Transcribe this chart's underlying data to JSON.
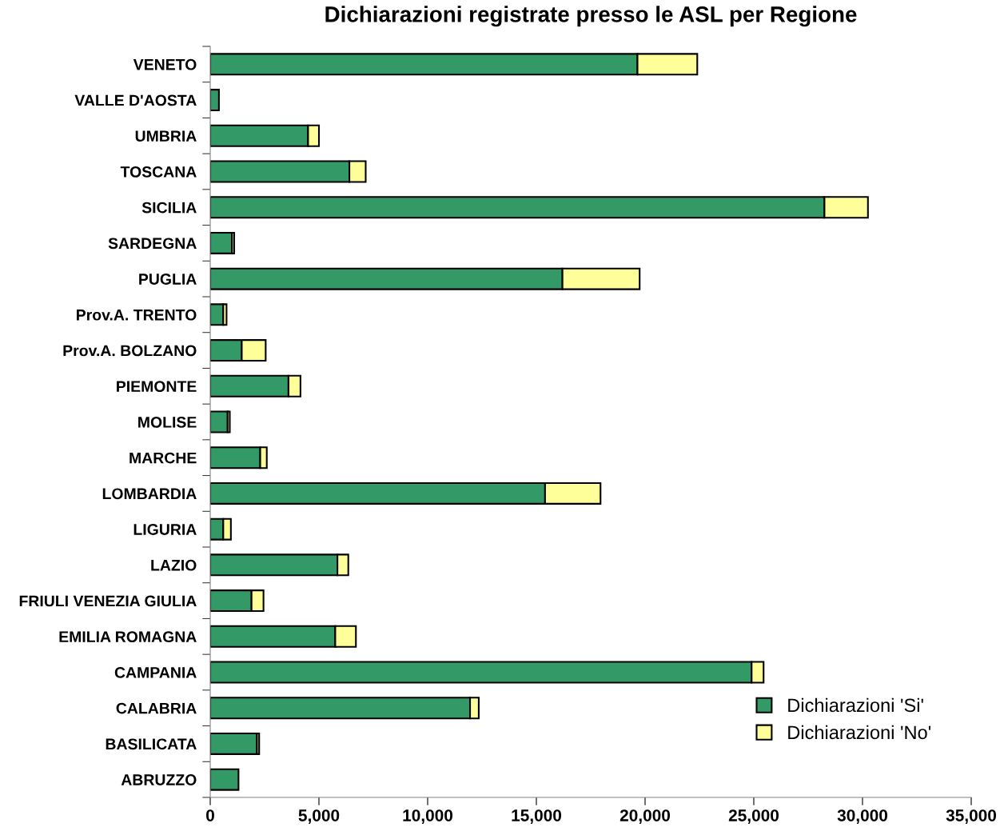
{
  "chart_data": {
    "type": "bar",
    "orientation": "horizontal",
    "stacked": true,
    "title": "Dichiarazioni registrate presso le ASL per Regione",
    "categories": [
      "VENETO",
      "VALLE D'AOSTA",
      "UMBRIA",
      "TOSCANA",
      "SICILIA",
      "SARDEGNA",
      "PUGLIA",
      "Prov.A. TRENTO",
      "Prov.A. BOLZANO",
      "PIEMONTE",
      "MOLISE",
      "MARCHE",
      "LOMBARDIA",
      "LIGURIA",
      "LAZIO",
      "FRIULI VENEZIA GIULIA",
      "EMILIA ROMAGNA",
      "CAMPANIA",
      "CALABRIA",
      "BASILICATA",
      "ABRUZZO"
    ],
    "series": [
      {
        "name": "Dichiarazioni 'Si'",
        "color": "#339966",
        "values": [
          19650,
          400,
          4500,
          6400,
          28250,
          1000,
          16200,
          600,
          1450,
          3600,
          800,
          2300,
          15400,
          600,
          5850,
          1900,
          5750,
          24900,
          11950,
          2150,
          1300
        ]
      },
      {
        "name": "Dichiarazioni 'No'",
        "color": "#ffff99",
        "values": [
          2750,
          null,
          500,
          750,
          2000,
          100,
          3550,
          150,
          1100,
          550,
          100,
          300,
          2550,
          350,
          500,
          550,
          950,
          550,
          400,
          100,
          null
        ]
      }
    ],
    "xlim": [
      0,
      35000
    ],
    "xticks": [
      0,
      {
        "value": 5000,
        "label": "5,000"
      },
      {
        "value": 10000,
        "label": "10,000"
      },
      {
        "value": 15000,
        "label": "15,000"
      },
      {
        "value": 20000,
        "label": "20,000"
      },
      {
        "value": 25000,
        "label": "25,000"
      },
      {
        "value": 30000,
        "label": "30,000"
      },
      {
        "value": 35000,
        "label": "35,000"
      }
    ],
    "grid": false,
    "legend": "bottom right"
  }
}
